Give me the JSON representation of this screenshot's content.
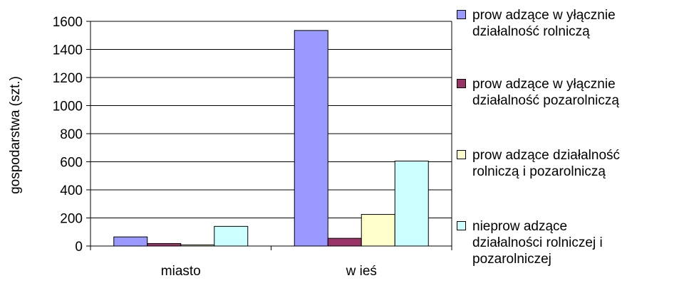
{
  "chart_data": {
    "type": "bar",
    "categories": [
      "miasto",
      "w ieś"
    ],
    "series": [
      {
        "name": "prow adzące w yłącznie\ndziałalność rolniczą",
        "values": [
          65,
          1535
        ],
        "color": "#9999ff"
      },
      {
        "name": "prow adzące w yłącznie\ndziałalność pozarolniczą",
        "values": [
          18,
          55
        ],
        "color": "#993366"
      },
      {
        "name": "prow adzące działalność\nrolniczą i pozarolniczą",
        "values": [
          8,
          225
        ],
        "color": "#ffffcc"
      },
      {
        "name": "nieprow adzące\ndziałalności rolniczej i\npozarolniczej",
        "values": [
          140,
          605
        ],
        "color": "#ccffff"
      }
    ],
    "ylabel": "gospodarstwa (szt.)",
    "yticks": [
      0,
      200,
      400,
      600,
      800,
      1000,
      1200,
      1400,
      1600
    ],
    "ylim": [
      0,
      1600
    ],
    "grid": true,
    "legend": "right"
  }
}
